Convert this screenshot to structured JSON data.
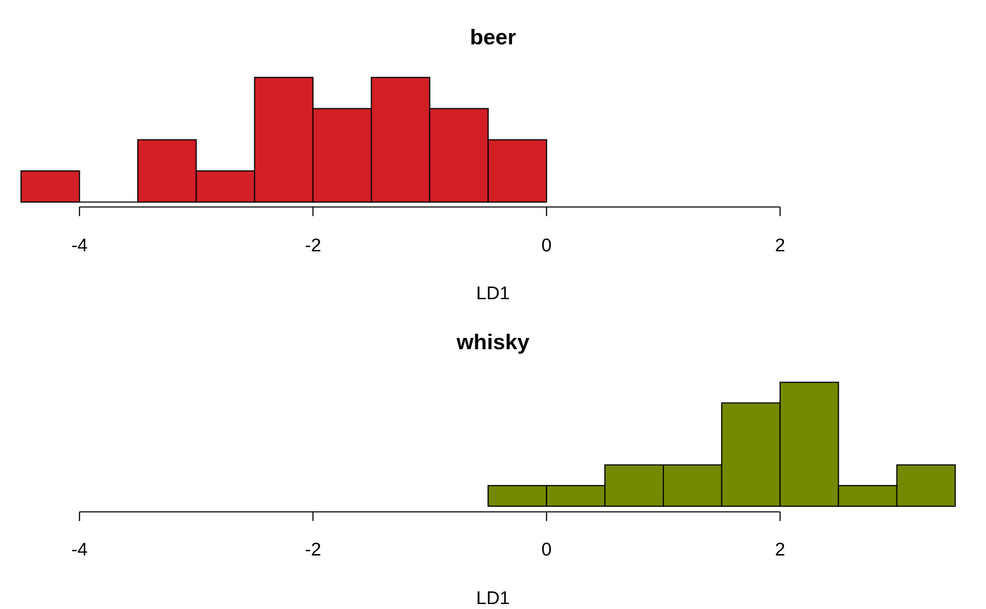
{
  "chart_data": [
    {
      "type": "bar",
      "subtype": "histogram",
      "title": "beer",
      "xlabel": "LD1",
      "ylabel": "",
      "color": "#d21f26",
      "bin_edges": [
        -4.5,
        -4.0,
        -3.5,
        -3.0,
        -2.5,
        -2.0,
        -1.5,
        -1.0,
        -0.5,
        0.0
      ],
      "values": [
        1,
        0,
        2,
        1,
        4,
        3,
        4,
        3,
        2
      ],
      "xlim": [
        -4.5,
        3.5
      ],
      "ylim": [
        0,
        4
      ],
      "x_ticks": [
        -4,
        -2,
        0,
        2
      ],
      "x_tick_labels": [
        "-4",
        "-2",
        "0",
        "2"
      ],
      "grid": false,
      "legend": "none"
    },
    {
      "type": "bar",
      "subtype": "histogram",
      "title": "whisky",
      "xlabel": "LD1",
      "ylabel": "",
      "color": "#738a00",
      "bin_edges": [
        -0.5,
        0.0,
        0.5,
        1.0,
        1.5,
        2.0,
        2.5,
        3.0,
        3.5
      ],
      "values": [
        1,
        1,
        2,
        2,
        5,
        6,
        1,
        2
      ],
      "xlim": [
        -4.5,
        3.5
      ],
      "ylim": [
        0,
        6
      ],
      "x_ticks": [
        -4,
        -2,
        0,
        2
      ],
      "x_tick_labels": [
        "-4",
        "-2",
        "0",
        "2"
      ],
      "grid": false,
      "legend": "none"
    }
  ]
}
